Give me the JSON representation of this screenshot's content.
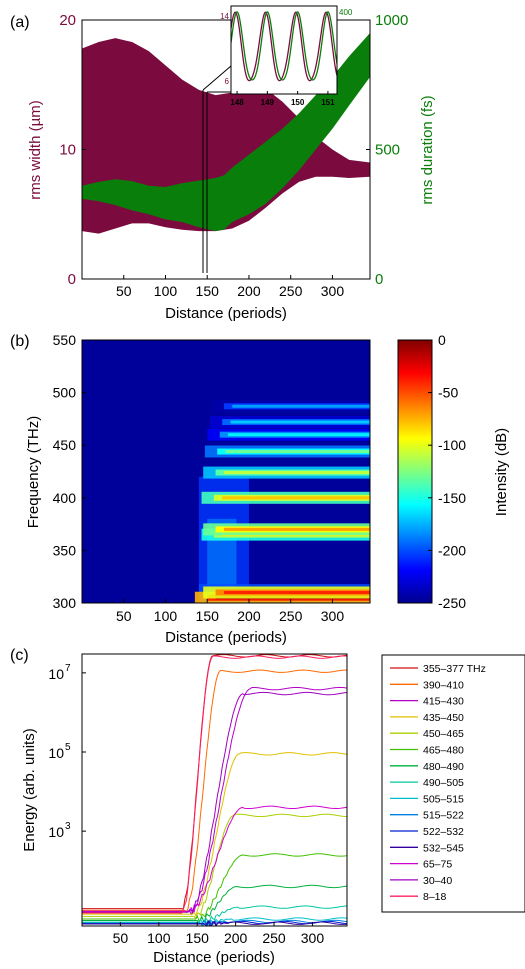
{
  "chart_data": [
    {
      "panel": "(a)",
      "type": "area",
      "xlabel": "Distance (periods)",
      "ylabel_left": "rms width (µm)",
      "ylabel_right": "rms duration (fs)",
      "xlim": [
        0,
        345
      ],
      "ylim_left": [
        0,
        20
      ],
      "ylim_right": [
        0,
        1000
      ],
      "x_ticks": [
        50,
        100,
        150,
        200,
        250,
        300
      ],
      "y_ticks_left": [
        0,
        10,
        20
      ],
      "y_ticks_right": [
        0,
        500,
        1000
      ],
      "colors": {
        "width": "#7b0b3e",
        "duration": "#0a7e0a"
      },
      "series": [
        {
          "name": "rms width",
          "axis": "left",
          "x": [
            0,
            20,
            40,
            60,
            80,
            100,
            120,
            140,
            160,
            180,
            200,
            220,
            240,
            260,
            280,
            300,
            320,
            345
          ],
          "upper": [
            17.8,
            18.3,
            18.6,
            18.3,
            17.6,
            16.5,
            15.4,
            14.6,
            14.2,
            14.4,
            14.9,
            14.7,
            13.7,
            12.4,
            11.0,
            10.0,
            9.2,
            9.0
          ],
          "lower": [
            3.7,
            3.5,
            3.9,
            4.3,
            4.3,
            4.0,
            3.8,
            3.7,
            3.7,
            3.9,
            4.5,
            5.5,
            6.6,
            7.5,
            7.9,
            7.9,
            7.8,
            7.9
          ]
        },
        {
          "name": "rms duration",
          "axis": "right",
          "x": [
            0,
            20,
            40,
            60,
            80,
            100,
            120,
            140,
            160,
            170,
            180,
            200,
            220,
            240,
            260,
            280,
            300,
            320,
            345
          ],
          "upper": [
            360,
            375,
            385,
            378,
            360,
            355,
            370,
            380,
            390,
            400,
            430,
            480,
            530,
            580,
            640,
            710,
            780,
            860,
            950
          ],
          "lower": [
            310,
            300,
            285,
            265,
            250,
            230,
            220,
            200,
            185,
            190,
            220,
            250,
            290,
            350,
            420,
            500,
            580,
            670,
            780
          ]
        }
      ],
      "inset": {
        "x_ticks": [
          148,
          149,
          150,
          151
        ],
        "left_labels": [
          "14",
          "6"
        ],
        "right_label": "400",
        "xlim": [
          147.8,
          151.3
        ]
      }
    },
    {
      "panel": "(b)",
      "type": "heatmap",
      "xlabel": "Distance (periods)",
      "ylabel": "Frequency (THz)",
      "colorbar_label": "Intensity (dB)",
      "xlim": [
        0,
        345
      ],
      "ylim": [
        300,
        550
      ],
      "clim": [
        -250,
        0
      ],
      "x_ticks": [
        50,
        100,
        150,
        200,
        250,
        300
      ],
      "y_ticks": [
        300,
        350,
        400,
        450,
        500,
        550
      ],
      "colorbar_ticks": [
        0,
        -50,
        -100,
        -150,
        -200,
        -250
      ],
      "bands": [
        {
          "freq": 305,
          "start": 140,
          "level": -15
        },
        {
          "freq": 310,
          "start": 150,
          "level": -40
        },
        {
          "freq": 365,
          "start": 148,
          "level": -90
        },
        {
          "freq": 370,
          "start": 150,
          "level": -70
        },
        {
          "freq": 400,
          "start": 148,
          "level": -80
        },
        {
          "freq": 424,
          "start": 150,
          "level": -110
        },
        {
          "freq": 444,
          "start": 152,
          "level": -130
        },
        {
          "freq": 460,
          "start": 155,
          "level": -160
        },
        {
          "freq": 472,
          "start": 158,
          "level": -170
        },
        {
          "freq": 487,
          "start": 160,
          "level": -180
        }
      ]
    },
    {
      "panel": "(c)",
      "type": "line",
      "xlabel": "Distance (periods)",
      "ylabel": "Energy (arb. units)",
      "yscale": "log",
      "xlim": [
        0,
        345
      ],
      "ylim": [
        4,
        30000000
      ],
      "x_ticks": [
        50,
        100,
        150,
        200,
        250,
        300
      ],
      "y_ticks": [
        1000,
        100000,
        10000000
      ],
      "y_tick_labels": [
        "10",
        "10",
        "10"
      ],
      "y_tick_exponents": [
        "3",
        "5",
        "7"
      ],
      "legend_position": "right",
      "series": [
        {
          "name": "355–377 THz",
          "color": "#d01010",
          "start": 11,
          "rise": 130,
          "span": 40,
          "final": 27000000
        },
        {
          "name": "390–410",
          "color": "#ff6a00",
          "start": 10,
          "rise": 135,
          "span": 45,
          "final": 11000000
        },
        {
          "name": "415–430",
          "color": "#b500c8",
          "start": 9,
          "rise": 140,
          "span": 80,
          "final": 4000000
        },
        {
          "name": "435–450",
          "color": "#e0c000",
          "start": 8,
          "rise": 145,
          "span": 60,
          "final": 90000
        },
        {
          "name": "450–465",
          "color": "#a8d000",
          "start": 7,
          "rise": 148,
          "span": 50,
          "final": 2500
        },
        {
          "name": "465–480",
          "color": "#40c000",
          "start": 6,
          "rise": 150,
          "span": 60,
          "final": 250
        },
        {
          "name": "480–490",
          "color": "#00b040",
          "start": 5.5,
          "rise": 152,
          "span": 50,
          "final": 40
        },
        {
          "name": "490–505",
          "color": "#00c8a0",
          "start": 5,
          "rise": 154,
          "span": 50,
          "final": 12
        },
        {
          "name": "505–515",
          "color": "#00c0d0",
          "start": 4.8,
          "rise": 156,
          "span": 40,
          "final": 6
        },
        {
          "name": "515–522",
          "color": "#0080e0",
          "start": 4.7,
          "rise": 158,
          "span": 30,
          "final": 5.2
        },
        {
          "name": "522–532",
          "color": "#0020d0",
          "start": 4.6,
          "rise": 160,
          "span": 30,
          "final": 4.9
        },
        {
          "name": "532–545",
          "color": "#3000a0",
          "start": 4.5,
          "rise": 162,
          "span": 30,
          "final": 4.7
        },
        {
          "name": "65–75",
          "color": "#d000d0",
          "start": 9.5,
          "rise": 140,
          "span": 70,
          "final": 4000
        },
        {
          "name": "30–40",
          "color": "#a000c0",
          "start": 9,
          "rise": 140,
          "span": 70,
          "final": 3000000
        },
        {
          "name": "8–18",
          "color": "#ff2060",
          "start": 8.5,
          "rise": 130,
          "span": 40,
          "final": 25000000
        }
      ]
    }
  ]
}
